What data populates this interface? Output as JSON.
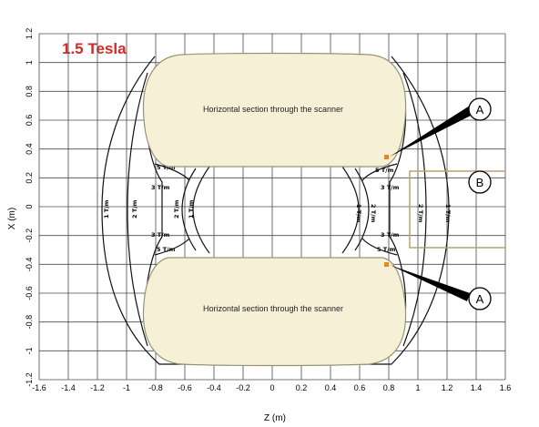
{
  "title": "1.5 Tesla",
  "chart_data": {
    "type": "contour",
    "xlabel": "Z (m)",
    "ylabel": "X (m)",
    "xlim": [
      -1.6,
      1.6
    ],
    "ylim": [
      -1.2,
      1.2
    ],
    "x_ticks": [
      "-1.6",
      "-1.4",
      "-1.2",
      "-1",
      "-0.8",
      "-0.6",
      "-0.4",
      "-0.2",
      "0",
      "0.2",
      "0.4",
      "0.6",
      "0.8",
      "1",
      "1.2",
      "1.4",
      "1.6"
    ],
    "y_ticks": [
      "1.2",
      "1",
      "0.8",
      "0.6",
      "0.4",
      "0.2",
      "0",
      "-0.2",
      "-0.4",
      "-0.6",
      "-0.8",
      "-1",
      "-1.2"
    ],
    "grid": true,
    "contour_levels": [
      {
        "label": "1 T/m",
        "value": 1
      },
      {
        "label": "2 T/m",
        "value": 2
      },
      {
        "label": "3 T/m",
        "value": 3
      },
      {
        "label": "5 T/m",
        "value": 5
      }
    ],
    "regions": [
      {
        "name": "top",
        "label": "Horizontal section through the scanner"
      },
      {
        "name": "bottom",
        "label": "Horizontal section through the scanner"
      }
    ],
    "callouts": [
      "A",
      "B",
      "A"
    ]
  },
  "colors": {
    "title": "#d42a2a",
    "scanner_fill": "#f6f1d6",
    "marker": "#e0892a",
    "frame_b": "#b8a36a"
  }
}
